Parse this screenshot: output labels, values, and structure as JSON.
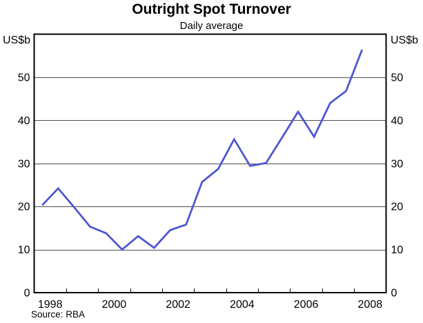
{
  "header": {
    "title": "Outright Spot Turnover",
    "subtitle": "Daily average"
  },
  "axes": {
    "left_unit": "US$b",
    "right_unit": "US$b"
  },
  "footer": {
    "source": "Source: RBA"
  },
  "chart_data": {
    "type": "line",
    "title": "Outright Spot Turnover",
    "subtitle": "Daily average",
    "ylabel": "US$b",
    "ylim": [
      0,
      60
    ],
    "y_gridlines": [
      10,
      20,
      30,
      40,
      50
    ],
    "y_tick_labels": [
      "0",
      "10",
      "20",
      "30",
      "40",
      "50"
    ],
    "y_tick_values": [
      0,
      10,
      20,
      30,
      40,
      50
    ],
    "xlim": [
      1998,
      2009
    ],
    "x_minor_ticks": [
      1999,
      2000,
      2001,
      2002,
      2003,
      2004,
      2005,
      2006,
      2007,
      2008
    ],
    "x_label_years": [
      1998,
      2000,
      2002,
      2004,
      2006,
      2008
    ],
    "grid": true,
    "legend_position": "none",
    "colors": {
      "line": "#4d57d2",
      "grid": "#4d4d4d",
      "axis": "#000000"
    },
    "series": [
      {
        "name": "Outright spot turnover (daily average)",
        "color": "#4d57d2",
        "periods": [
          "1998 H1",
          "1998 H2",
          "1999 H1",
          "1999 H2",
          "2000 H1",
          "2000 H2",
          "2001 H1",
          "2001 H2",
          "2002 H1",
          "2002 H2",
          "2003 H1",
          "2003 H2",
          "2004 H1",
          "2004 H2",
          "2005 H1",
          "2005 H2",
          "2006 H1",
          "2006 H2",
          "2007 H1",
          "2007 H2",
          "2008 H1"
        ],
        "x": [
          1998.25,
          1998.75,
          1999.25,
          1999.75,
          2000.25,
          2000.75,
          2001.25,
          2001.75,
          2002.25,
          2002.75,
          2003.25,
          2003.75,
          2004.25,
          2004.75,
          2005.25,
          2005.75,
          2006.25,
          2006.75,
          2007.25,
          2007.75,
          2008.25
        ],
        "values": [
          20.3,
          24.2,
          19.8,
          15.3,
          13.8,
          10.0,
          13.1,
          10.4,
          14.5,
          15.8,
          25.7,
          28.7,
          35.6,
          29.4,
          30.1,
          36.0,
          42.0,
          36.2,
          44.0,
          46.8,
          56.4
        ]
      }
    ],
    "source": "Source: RBA"
  }
}
